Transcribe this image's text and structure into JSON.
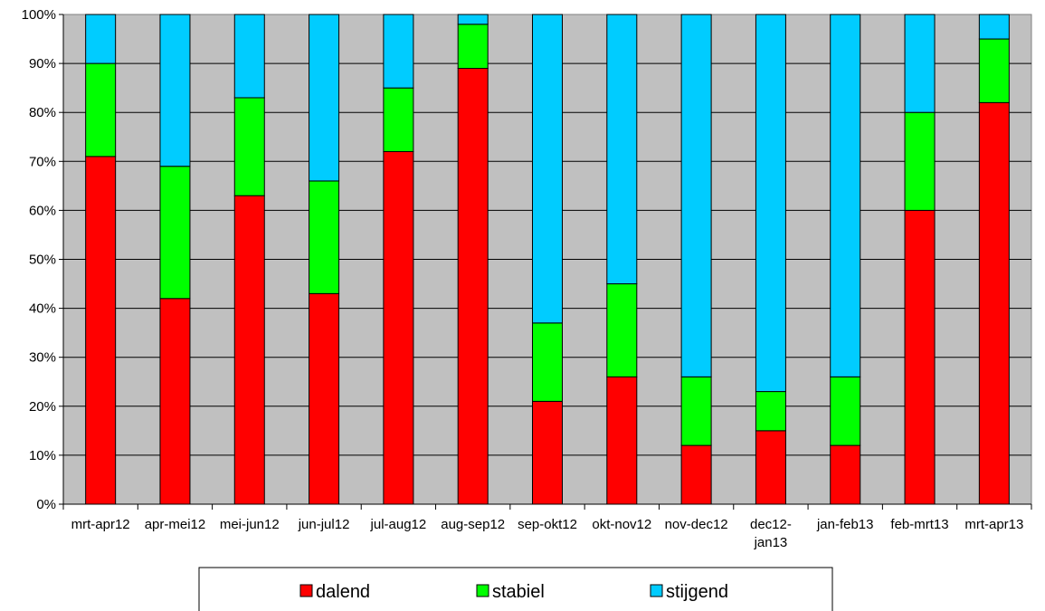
{
  "chart_data": {
    "type": "bar",
    "stacked": true,
    "normalized": true,
    "title": "",
    "xlabel": "",
    "ylabel": "",
    "ylim": [
      0,
      100
    ],
    "yticks": [
      "0%",
      "10%",
      "20%",
      "30%",
      "40%",
      "50%",
      "60%",
      "70%",
      "80%",
      "90%",
      "100%"
    ],
    "grid": true,
    "legend": "bottom",
    "plot_background": "#C0C0C0",
    "categories": [
      "mrt-apr12",
      "apr-mei12",
      "mei-jun12",
      "jun-jul12",
      "jul-aug12",
      "aug-sep12",
      "sep-okt12",
      "okt-nov12",
      "nov-dec12",
      "dec12-jan13",
      "jan-feb13",
      "feb-mrt13",
      "mrt-apr13"
    ],
    "category_label_lines": [
      [
        "mrt-apr12"
      ],
      [
        "apr-mei12"
      ],
      [
        "mei-jun12"
      ],
      [
        "jun-jul12"
      ],
      [
        "jul-aug12"
      ],
      [
        "aug-sep12"
      ],
      [
        "sep-okt12"
      ],
      [
        "okt-nov12"
      ],
      [
        "nov-dec12"
      ],
      [
        "dec12-",
        "jan13"
      ],
      [
        "jan-feb13"
      ],
      [
        "feb-mrt13"
      ],
      [
        "mrt-apr13"
      ]
    ],
    "series": [
      {
        "name": "dalend",
        "color": "#FF0000",
        "values": [
          71,
          42,
          63,
          43,
          72,
          89,
          21,
          26,
          12,
          15,
          12,
          60,
          82
        ]
      },
      {
        "name": "stabiel",
        "color": "#00FF00",
        "values": [
          19,
          27,
          20,
          23,
          13,
          9,
          16,
          19,
          14,
          8,
          14,
          20,
          13
        ]
      },
      {
        "name": "stijgend",
        "color": "#00CCFF",
        "values": [
          10,
          31,
          17,
          34,
          15,
          2,
          63,
          55,
          74,
          77,
          74,
          20,
          5
        ]
      }
    ]
  }
}
